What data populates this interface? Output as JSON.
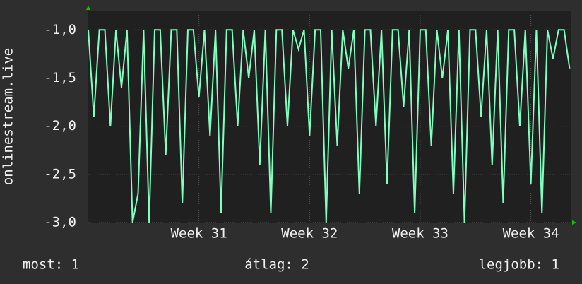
{
  "chart_data": {
    "type": "line",
    "y_label": "onlinestream.live",
    "ylim": [
      -3.0,
      -0.8
    ],
    "yticks": [
      {
        "value": -3.0,
        "label": "-3,0"
      },
      {
        "value": -2.5,
        "label": "-2,5"
      },
      {
        "value": -2.0,
        "label": "-2,0"
      },
      {
        "value": -1.5,
        "label": "-1,5"
      },
      {
        "value": -1.0,
        "label": "-1,0"
      }
    ],
    "xlim": [
      30.0,
      34.36
    ],
    "xticks": [
      {
        "value": 31,
        "label": "Week 31"
      },
      {
        "value": 32,
        "label": "Week 32"
      },
      {
        "value": 33,
        "label": "Week 33"
      },
      {
        "value": 34,
        "label": "Week 34"
      }
    ],
    "grid": true,
    "x": [
      30.0,
      30.05,
      30.1,
      30.15,
      30.2,
      30.25,
      30.3,
      30.35,
      30.4,
      30.45,
      30.5,
      30.55,
      30.6,
      30.65,
      30.7,
      30.75,
      30.8,
      30.85,
      30.9,
      30.95,
      31.0,
      31.05,
      31.1,
      31.15,
      31.2,
      31.25,
      31.3,
      31.35,
      31.4,
      31.45,
      31.5,
      31.55,
      31.6,
      31.65,
      31.7,
      31.75,
      31.8,
      31.85,
      31.9,
      31.95,
      32.0,
      32.05,
      32.1,
      32.15,
      32.2,
      32.25,
      32.3,
      32.35,
      32.4,
      32.45,
      32.5,
      32.55,
      32.6,
      32.65,
      32.7,
      32.75,
      32.8,
      32.85,
      32.9,
      32.95,
      33.0,
      33.05,
      33.1,
      33.15,
      33.2,
      33.25,
      33.3,
      33.35,
      33.4,
      33.45,
      33.5,
      33.55,
      33.6,
      33.65,
      33.7,
      33.75,
      33.8,
      33.85,
      33.9,
      33.95,
      34.0,
      34.05,
      34.1,
      34.15,
      34.2,
      34.25,
      34.3,
      34.35
    ],
    "series": [
      {
        "name": "onlinestream.live",
        "color": "#80ffc0",
        "values": [
          -1,
          -1.9,
          -1,
          -1,
          -2,
          -1,
          -1.6,
          -1,
          -3,
          -2.7,
          -1,
          -3,
          -1,
          -1,
          -2.3,
          -1,
          -1,
          -2.8,
          -1,
          -1,
          -1.7,
          -1,
          -2.1,
          -1,
          -2.9,
          -1,
          -1,
          -2,
          -1,
          -1.5,
          -1,
          -2.4,
          -1,
          -2.9,
          -1,
          -1,
          -2,
          -1,
          -1.2,
          -1,
          -2.1,
          -1,
          -1,
          -3,
          -1,
          -2.2,
          -1,
          -1.4,
          -1,
          -2.7,
          -1,
          -1,
          -2,
          -1,
          -2.6,
          -1,
          -1,
          -1.8,
          -1,
          -2.9,
          -1,
          -1,
          -2.2,
          -1,
          -1.5,
          -1,
          -2.7,
          -1,
          -3,
          -1,
          -1,
          -1.9,
          -1,
          -2.4,
          -1,
          -2.8,
          -1,
          -1,
          -2,
          -1,
          -2.6,
          -1,
          -2.9,
          -1,
          -1.3,
          -1,
          -1.0,
          -1.4
        ]
      }
    ],
    "footer": {
      "current": "most: 1",
      "average": "átlag: 2",
      "best": "legjobb: 1"
    }
  }
}
